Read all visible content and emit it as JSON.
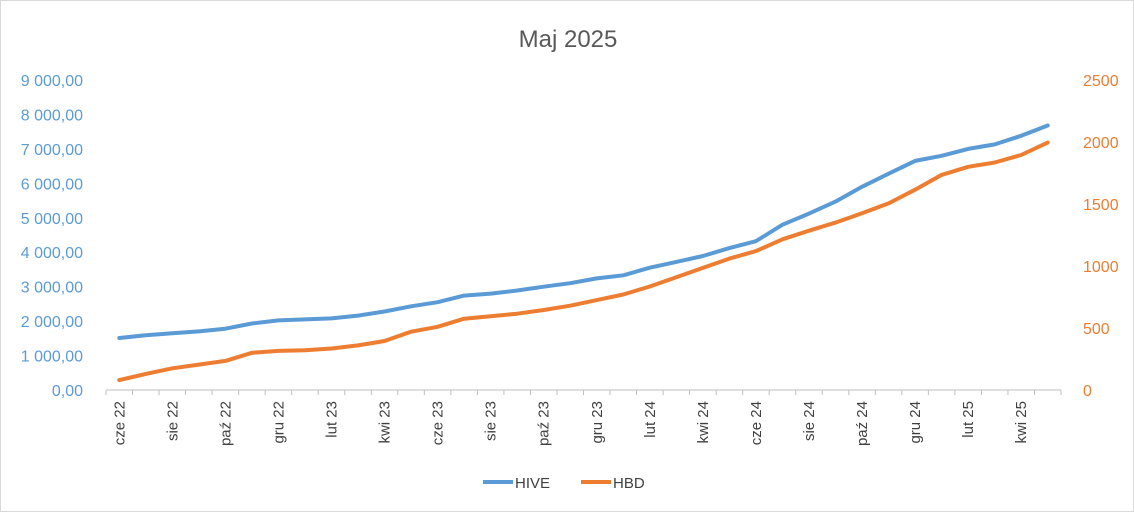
{
  "chart_data": {
    "type": "line",
    "title": "Maj 2025",
    "x_tick_labels": [
      "cze 22",
      "sie 22",
      "paź 22",
      "gru 22",
      "lut 23",
      "kwi 23",
      "cze 23",
      "sie 23",
      "paź 23",
      "gru 23",
      "lut 24",
      "kwi 24",
      "cze 24",
      "sie 24",
      "paź 24",
      "gru 24",
      "lut 25",
      "kwi 25"
    ],
    "x": [
      "cze 22",
      "lip 22",
      "sie 22",
      "wrz 22",
      "paź 22",
      "lis 22",
      "gru 22",
      "sty 23",
      "lut 23",
      "mar 23",
      "kwi 23",
      "maj 23",
      "cze 23",
      "lip 23",
      "sie 23",
      "wrz 23",
      "paź 23",
      "lis 23",
      "gru 23",
      "sty 24",
      "lut 24",
      "mar 24",
      "kwi 24",
      "maj 24",
      "cze 24",
      "lip 24",
      "sie 24",
      "wrz 24",
      "paź 24",
      "lis 24",
      "gru 24",
      "sty 25",
      "lut 25",
      "mar 25",
      "kwi 25",
      "maj 25"
    ],
    "y_left": {
      "lim": [
        0,
        9000
      ],
      "ticks": [
        "0,00",
        "1 000,00",
        "2 000,00",
        "3 000,00",
        "4 000,00",
        "5 000,00",
        "6 000,00",
        "7 000,00",
        "8 000,00",
        "9 000,00"
      ],
      "color": "#5b9bd5"
    },
    "y_right": {
      "lim": [
        0,
        2500
      ],
      "ticks": [
        "0",
        "500",
        "1000",
        "1500",
        "2000",
        "2500"
      ],
      "color": "#ed7d31"
    },
    "series": [
      {
        "name": "HIVE",
        "axis": "left",
        "color": "#5b9bd5",
        "values": [
          1510,
          1590,
          1650,
          1700,
          1780,
          1930,
          2020,
          2050,
          2080,
          2160,
          2280,
          2430,
          2550,
          2740,
          2800,
          2890,
          3000,
          3100,
          3240,
          3330,
          3550,
          3720,
          3890,
          4120,
          4320,
          4800,
          5120,
          5470,
          5900,
          6280,
          6650,
          6800,
          7000,
          7130,
          7380,
          7680
        ]
      },
      {
        "name": "HBD",
        "axis": "right",
        "color": "#ed7d31",
        "values": [
          80,
          130,
          175,
          205,
          235,
          300,
          315,
          320,
          335,
          360,
          395,
          470,
          510,
          575,
          595,
          615,
          645,
          680,
          725,
          770,
          835,
          910,
          985,
          1060,
          1120,
          1215,
          1285,
          1350,
          1425,
          1505,
          1615,
          1735,
          1800,
          1835,
          1895,
          1995
        ]
      }
    ],
    "legend_position": "bottom",
    "grid": false
  }
}
